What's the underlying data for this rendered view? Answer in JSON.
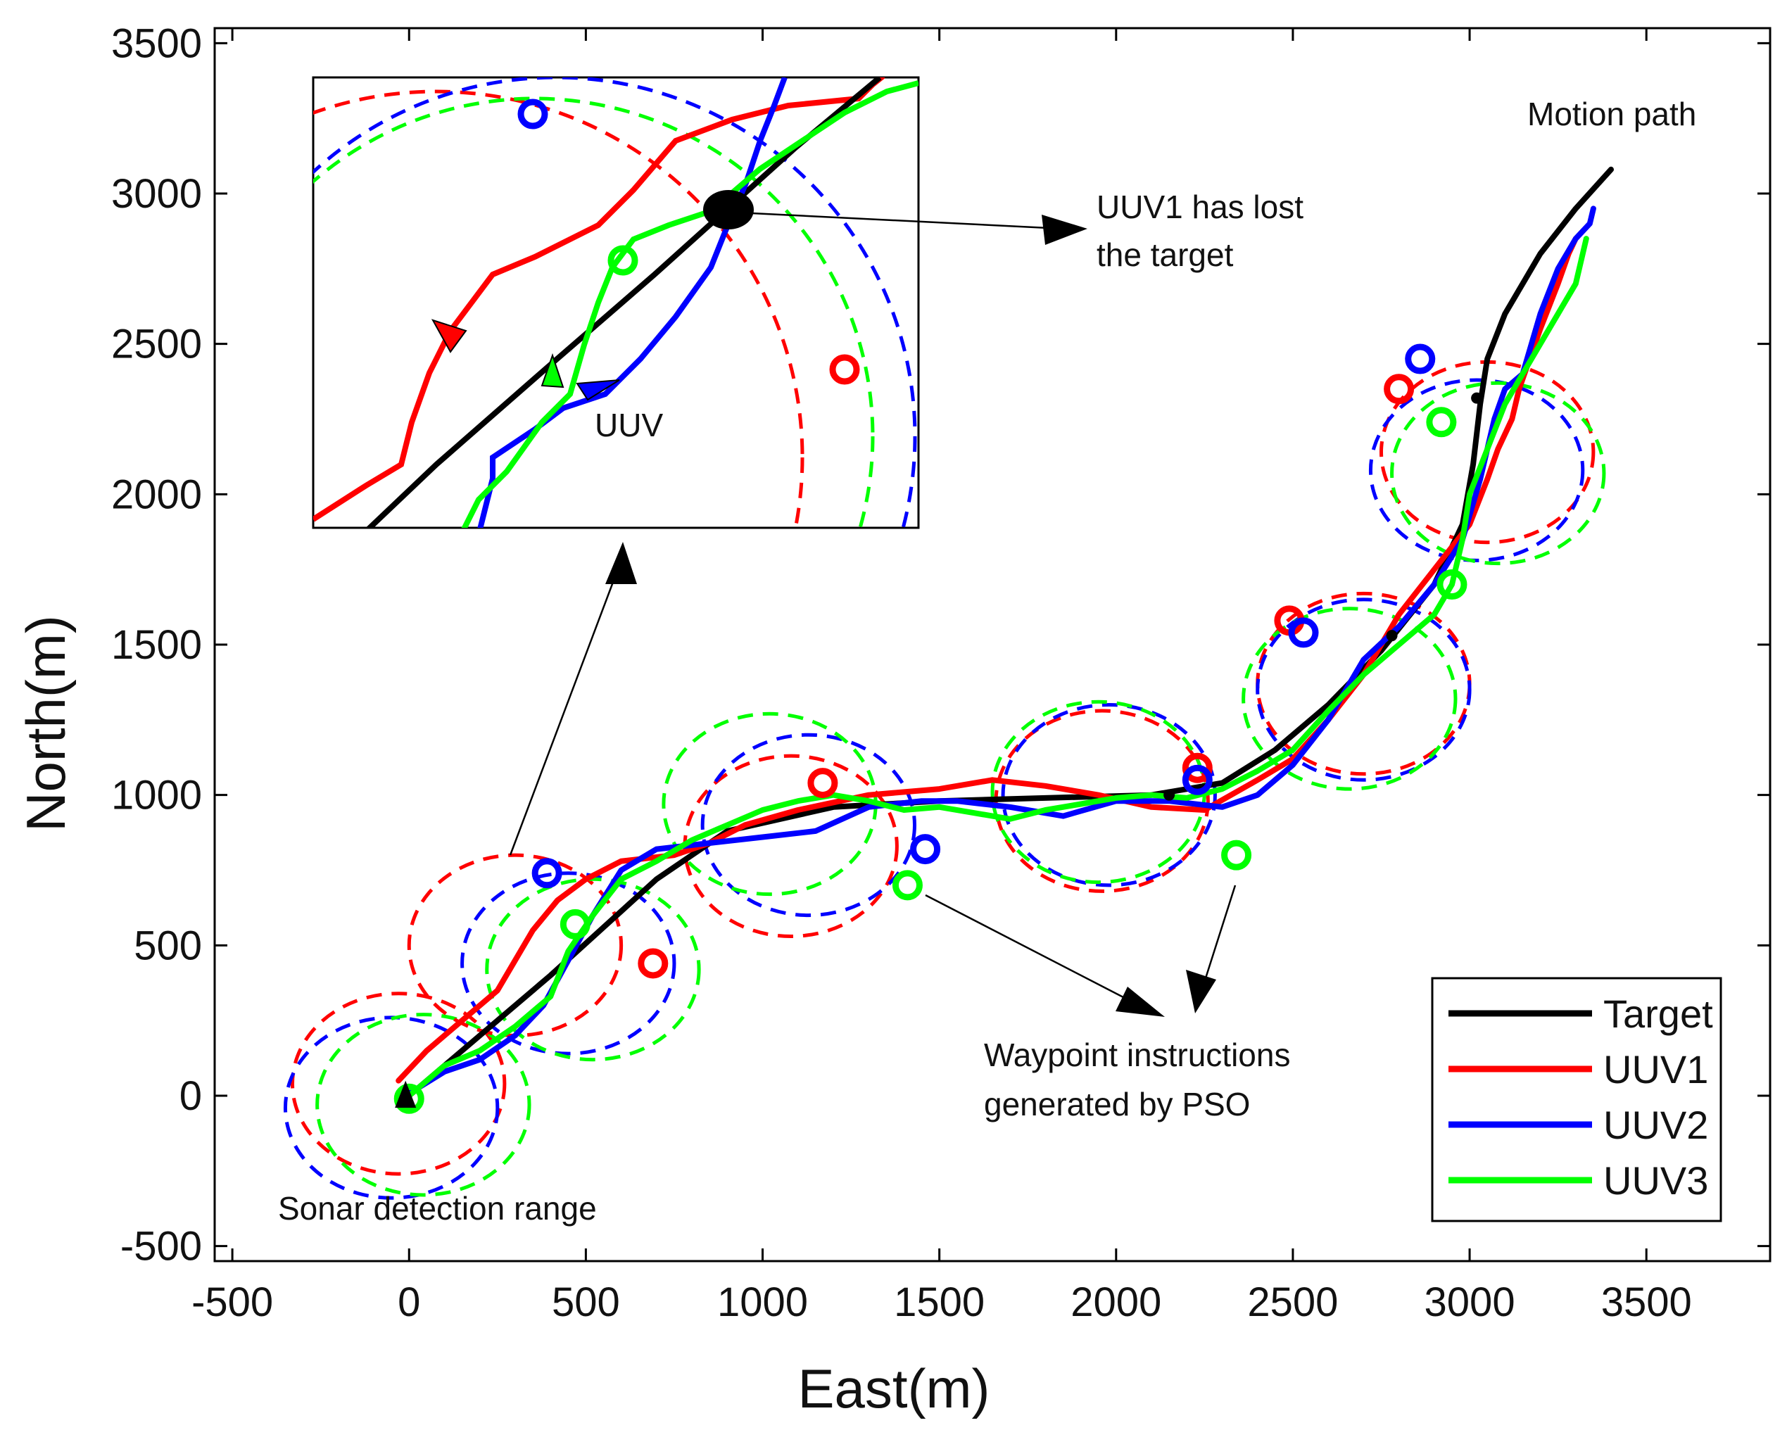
{
  "chart_data": {
    "type": "line",
    "title": "",
    "xlabel": "East(m)",
    "ylabel": "North(m)",
    "xlim": [
      -550,
      3850
    ],
    "ylim": [
      -550,
      3550
    ],
    "xticks": [
      -500,
      0,
      500,
      1000,
      1500,
      2000,
      2500,
      3000,
      3500
    ],
    "yticks": [
      -500,
      0,
      500,
      1000,
      1500,
      2000,
      2500,
      3000,
      3500
    ],
    "xtick_labels": [
      "-500",
      "0",
      "500",
      "1000",
      "1500",
      "2000",
      "2500",
      "3000",
      "3500"
    ],
    "ytick_labels": [
      "-500",
      "0",
      "500",
      "1000",
      "1500",
      "2000",
      "2500",
      "3000",
      "3500"
    ],
    "legend_position": "bottom-right",
    "series": [
      {
        "name": "Target",
        "color": "#000000",
        "x": [
          0,
          200,
          400,
          550,
          700,
          900,
          1200,
          1500,
          1800,
          2100,
          2300,
          2450,
          2600,
          2750,
          2900,
          2980,
          3010,
          3030,
          3050,
          3100,
          3200,
          3300,
          3400
        ],
        "y": [
          0,
          200,
          400,
          560,
          720,
          880,
          960,
          980,
          990,
          1000,
          1040,
          1150,
          1300,
          1480,
          1700,
          1900,
          2100,
          2300,
          2450,
          2600,
          2800,
          2950,
          3080
        ]
      },
      {
        "name": "UUV1",
        "color": "#ff0000",
        "x": [
          -30,
          50,
          150,
          250,
          300,
          350,
          420,
          500,
          600,
          750,
          850,
          950,
          1100,
          1300,
          1500,
          1650,
          1800,
          1950,
          2100,
          2250,
          2400,
          2500,
          2600,
          2700,
          2800,
          2900,
          3000,
          3050,
          3080,
          3120,
          3140,
          3200,
          3250,
          3280,
          3300
        ],
        "y": [
          50,
          150,
          250,
          350,
          450,
          550,
          650,
          720,
          780,
          800,
          840,
          900,
          950,
          1000,
          1020,
          1050,
          1030,
          1000,
          960,
          950,
          1050,
          1120,
          1250,
          1400,
          1600,
          1750,
          1900,
          2050,
          2150,
          2250,
          2350,
          2550,
          2700,
          2800,
          2850
        ]
      },
      {
        "name": "UUV2",
        "color": "#0000ff",
        "x": [
          -10,
          100,
          200,
          300,
          380,
          450,
          520,
          600,
          700,
          850,
          1000,
          1150,
          1300,
          1450,
          1550,
          1700,
          1850,
          2000,
          2150,
          2300,
          2400,
          2500,
          2600,
          2700,
          2800,
          2900,
          2980,
          3030,
          3070,
          3100,
          3150,
          3200,
          3250,
          3300,
          3340,
          3350
        ],
        "y": [
          0,
          80,
          120,
          200,
          300,
          450,
          600,
          750,
          820,
          840,
          860,
          880,
          960,
          980,
          980,
          960,
          930,
          980,
          980,
          960,
          1000,
          1100,
          1250,
          1450,
          1560,
          1700,
          1850,
          2050,
          2250,
          2350,
          2400,
          2600,
          2750,
          2850,
          2900,
          2950
        ]
      },
      {
        "name": "UUV3",
        "color": "#00ff00",
        "x": [
          0,
          100,
          200,
          300,
          400,
          450,
          520,
          600,
          700,
          800,
          900,
          1000,
          1100,
          1200,
          1300,
          1400,
          1500,
          1600,
          1700,
          1800,
          1900,
          2000,
          2100,
          2200,
          2300,
          2400,
          2500,
          2600,
          2700,
          2800,
          2900,
          2950,
          2980,
          3000,
          3050,
          3100,
          3200,
          3300,
          3320,
          3330
        ],
        "y": [
          0,
          100,
          150,
          230,
          330,
          480,
          600,
          720,
          780,
          850,
          900,
          950,
          980,
          1000,
          980,
          950,
          960,
          940,
          920,
          950,
          970,
          990,
          1000,
          990,
          1020,
          1080,
          1150,
          1280,
          1400,
          1500,
          1600,
          1700,
          1850,
          2000,
          2150,
          2300,
          2500,
          2700,
          2800,
          2850
        ]
      }
    ],
    "sonar_ranges": {
      "radius": 300,
      "circles": [
        {
          "color": "#ff0000",
          "cx": -30,
          "cy": 40
        },
        {
          "color": "#0000ff",
          "cx": -50,
          "cy": -40
        },
        {
          "color": "#00ff00",
          "cx": 40,
          "cy": -30
        },
        {
          "color": "#ff0000",
          "cx": 300,
          "cy": 500
        },
        {
          "color": "#0000ff",
          "cx": 450,
          "cy": 440
        },
        {
          "color": "#00ff00",
          "cx": 520,
          "cy": 420
        },
        {
          "color": "#ff0000",
          "cx": 1080,
          "cy": 830
        },
        {
          "color": "#0000ff",
          "cx": 1130,
          "cy": 900
        },
        {
          "color": "#00ff00",
          "cx": 1020,
          "cy": 970
        },
        {
          "color": "#ff0000",
          "cx": 1960,
          "cy": 980
        },
        {
          "color": "#0000ff",
          "cx": 1980,
          "cy": 1000
        },
        {
          "color": "#00ff00",
          "cx": 1950,
          "cy": 1010
        },
        {
          "color": "#ff0000",
          "cx": 2700,
          "cy": 1370
        },
        {
          "color": "#0000ff",
          "cx": 2700,
          "cy": 1350
        },
        {
          "color": "#00ff00",
          "cx": 2660,
          "cy": 1320
        },
        {
          "color": "#ff0000",
          "cx": 3050,
          "cy": 2140
        },
        {
          "color": "#0000ff",
          "cx": 3020,
          "cy": 2080
        },
        {
          "color": "#00ff00",
          "cx": 3080,
          "cy": 2070
        }
      ]
    },
    "waypoints": [
      {
        "color": "#ff0000",
        "x": 690,
        "y": 440
      },
      {
        "color": "#0000ff",
        "x": 390,
        "y": 740
      },
      {
        "color": "#00ff00",
        "x": 470,
        "y": 570
      },
      {
        "color": "#ff0000",
        "x": 1170,
        "y": 1040
      },
      {
        "color": "#0000ff",
        "x": 1460,
        "y": 820
      },
      {
        "color": "#00ff00",
        "x": 1410,
        "y": 700
      },
      {
        "color": "#ff0000",
        "x": 2230,
        "y": 1090
      },
      {
        "color": "#0000ff",
        "x": 2230,
        "y": 1050
      },
      {
        "color": "#00ff00",
        "x": 2340,
        "y": 800
      },
      {
        "color": "#ff0000",
        "x": 2490,
        "y": 1580
      },
      {
        "color": "#0000ff",
        "x": 2530,
        "y": 1540
      },
      {
        "color": "#00ff00",
        "x": 2950,
        "y": 1700
      },
      {
        "color": "#ff0000",
        "x": 2800,
        "y": 2350
      },
      {
        "color": "#0000ff",
        "x": 2860,
        "y": 2450
      },
      {
        "color": "#00ff00",
        "x": 2920,
        "y": 2240
      },
      {
        "color": "#00ff00",
        "x": 0,
        "y": -10
      }
    ],
    "annotations": {
      "motion_path": "Motion path",
      "lost_target": [
        "UUV1 has lost",
        "the target"
      ],
      "uuv": "UUV",
      "waypoint": [
        "Waypoint instructions",
        "generated by PSO"
      ],
      "sonar": "Sonar detection range"
    }
  }
}
